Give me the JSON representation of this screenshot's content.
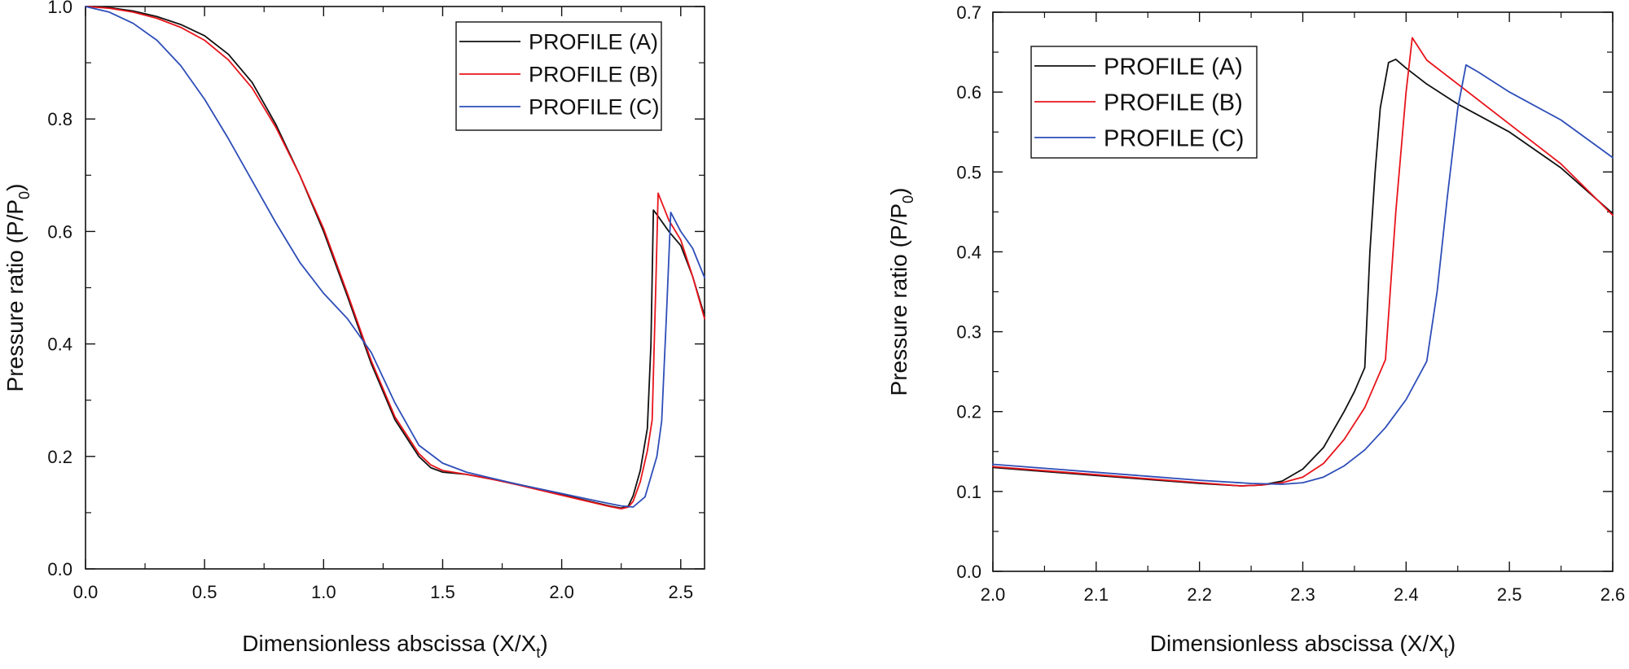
{
  "colors": {
    "profile_a": "#111111",
    "profile_b": "#e8141b",
    "profile_c": "#2e4eb8",
    "axis": "#111111"
  },
  "chart_data": [
    {
      "type": "line",
      "xlabel": "Dimensionless abscissa (X/X",
      "xlabel_sub": "t",
      "xlabel_tail": ")",
      "ylabel": "Pressure ratio (P/P",
      "ylabel_sub": "0",
      "ylabel_tail": ")",
      "xlim": [
        0,
        2.6
      ],
      "ylim": [
        0,
        1.0
      ],
      "xticks": [
        0,
        0.5,
        1.0,
        1.5,
        2.0,
        2.5
      ],
      "xtick_labels": [
        "0.0",
        "0.5",
        "1.0",
        "1.5",
        "2.0",
        "2.5"
      ],
      "yticks": [
        0,
        0.2,
        0.4,
        0.6,
        0.8,
        1.0
      ],
      "ytick_labels": [
        "0.0",
        "0.2",
        "0.4",
        "0.6",
        "0.8",
        "1.0"
      ],
      "legend_position": "top-right",
      "series": [
        {
          "name": "PROFILE (A)",
          "color_key": "profile_a",
          "x": [
            0,
            0.1,
            0.2,
            0.3,
            0.4,
            0.5,
            0.6,
            0.7,
            0.8,
            0.9,
            1.0,
            1.1,
            1.2,
            1.3,
            1.4,
            1.45,
            1.5,
            1.6,
            1.7,
            1.8,
            1.9,
            2.0,
            2.1,
            2.2,
            2.25,
            2.28,
            2.3,
            2.33,
            2.36,
            2.375,
            2.385,
            2.4,
            2.45,
            2.5,
            2.55,
            2.6
          ],
          "y": [
            1.0,
            0.998,
            0.992,
            0.982,
            0.968,
            0.948,
            0.915,
            0.865,
            0.79,
            0.7,
            0.6,
            0.485,
            0.365,
            0.265,
            0.2,
            0.18,
            0.172,
            0.168,
            0.16,
            0.152,
            0.142,
            0.132,
            0.122,
            0.112,
            0.108,
            0.112,
            0.13,
            0.175,
            0.25,
            0.4,
            0.638,
            0.63,
            0.6,
            0.575,
            0.52,
            0.45
          ]
        },
        {
          "name": "PROFILE (B)",
          "color_key": "profile_b",
          "x": [
            0,
            0.1,
            0.2,
            0.3,
            0.4,
            0.5,
            0.6,
            0.7,
            0.8,
            0.9,
            1.0,
            1.1,
            1.2,
            1.3,
            1.4,
            1.45,
            1.5,
            1.6,
            1.7,
            1.8,
            1.9,
            2.0,
            2.1,
            2.2,
            2.25,
            2.28,
            2.3,
            2.33,
            2.36,
            2.38,
            2.395,
            2.405,
            2.45,
            2.5,
            2.55,
            2.6
          ],
          "y": [
            1.0,
            0.997,
            0.99,
            0.979,
            0.963,
            0.94,
            0.905,
            0.855,
            0.785,
            0.7,
            0.605,
            0.49,
            0.37,
            0.27,
            0.205,
            0.185,
            0.175,
            0.168,
            0.16,
            0.151,
            0.141,
            0.131,
            0.121,
            0.111,
            0.107,
            0.11,
            0.12,
            0.155,
            0.21,
            0.265,
            0.5,
            0.668,
            0.62,
            0.585,
            0.52,
            0.445
          ]
        },
        {
          "name": "PROFILE (C)",
          "color_key": "profile_c",
          "x": [
            0,
            0.1,
            0.2,
            0.3,
            0.4,
            0.5,
            0.6,
            0.7,
            0.8,
            0.9,
            1.0,
            1.1,
            1.2,
            1.3,
            1.4,
            1.5,
            1.6,
            1.7,
            1.8,
            1.9,
            2.0,
            2.1,
            2.2,
            2.25,
            2.3,
            2.35,
            2.4,
            2.42,
            2.44,
            2.458,
            2.5,
            2.55,
            2.6
          ],
          "y": [
            1.0,
            0.99,
            0.97,
            0.94,
            0.895,
            0.835,
            0.765,
            0.69,
            0.615,
            0.545,
            0.49,
            0.445,
            0.385,
            0.295,
            0.22,
            0.188,
            0.172,
            0.162,
            0.152,
            0.143,
            0.134,
            0.125,
            0.116,
            0.112,
            0.11,
            0.128,
            0.2,
            0.263,
            0.45,
            0.634,
            0.6,
            0.57,
            0.518
          ]
        }
      ]
    },
    {
      "type": "line",
      "xlabel": "Dimensionless abscissa (X/X",
      "xlabel_sub": "t",
      "xlabel_tail": ")",
      "ylabel": "Pressure ratio (P/P",
      "ylabel_sub": "0",
      "ylabel_tail": ")",
      "xlim": [
        2.0,
        2.6
      ],
      "ylim": [
        0,
        0.7
      ],
      "xticks": [
        2.0,
        2.1,
        2.2,
        2.3,
        2.4,
        2.5,
        2.6
      ],
      "xtick_labels": [
        "2.0",
        "2.1",
        "2.2",
        "2.3",
        "2.4",
        "2.5",
        "2.6"
      ],
      "yticks": [
        0,
        0.1,
        0.2,
        0.3,
        0.4,
        0.5,
        0.6,
        0.7
      ],
      "ytick_labels": [
        "0.0",
        "0.1",
        "0.2",
        "0.3",
        "0.4",
        "0.5",
        "0.6",
        "0.7"
      ],
      "legend_position": "top-left",
      "series": [
        {
          "name": "PROFILE (A)",
          "color_key": "profile_a",
          "x": [
            2.0,
            2.05,
            2.1,
            2.15,
            2.2,
            2.24,
            2.26,
            2.28,
            2.3,
            2.32,
            2.34,
            2.35,
            2.36,
            2.365,
            2.37,
            2.375,
            2.383,
            2.39,
            2.4,
            2.42,
            2.45,
            2.5,
            2.55,
            2.6
          ],
          "y": [
            0.13,
            0.125,
            0.12,
            0.115,
            0.11,
            0.107,
            0.108,
            0.113,
            0.128,
            0.155,
            0.2,
            0.225,
            0.255,
            0.4,
            0.5,
            0.58,
            0.637,
            0.641,
            0.63,
            0.61,
            0.585,
            0.55,
            0.505,
            0.448
          ]
        },
        {
          "name": "PROFILE (B)",
          "color_key": "profile_b",
          "x": [
            2.0,
            2.05,
            2.1,
            2.15,
            2.2,
            2.24,
            2.26,
            2.28,
            2.3,
            2.32,
            2.34,
            2.36,
            2.38,
            2.39,
            2.4,
            2.406,
            2.42,
            2.45,
            2.5,
            2.55,
            2.6
          ],
          "y": [
            0.131,
            0.126,
            0.121,
            0.116,
            0.111,
            0.107,
            0.108,
            0.111,
            0.118,
            0.135,
            0.165,
            0.205,
            0.265,
            0.45,
            0.6,
            0.668,
            0.64,
            0.61,
            0.56,
            0.51,
            0.446
          ]
        },
        {
          "name": "PROFILE (C)",
          "color_key": "profile_c",
          "x": [
            2.0,
            2.05,
            2.1,
            2.15,
            2.2,
            2.25,
            2.28,
            2.3,
            2.32,
            2.34,
            2.36,
            2.38,
            2.4,
            2.42,
            2.43,
            2.44,
            2.45,
            2.458,
            2.47,
            2.5,
            2.55,
            2.6
          ],
          "y": [
            0.134,
            0.129,
            0.124,
            0.119,
            0.114,
            0.11,
            0.109,
            0.111,
            0.118,
            0.132,
            0.152,
            0.18,
            0.215,
            0.263,
            0.35,
            0.47,
            0.58,
            0.634,
            0.625,
            0.6,
            0.565,
            0.518
          ]
        }
      ]
    }
  ]
}
